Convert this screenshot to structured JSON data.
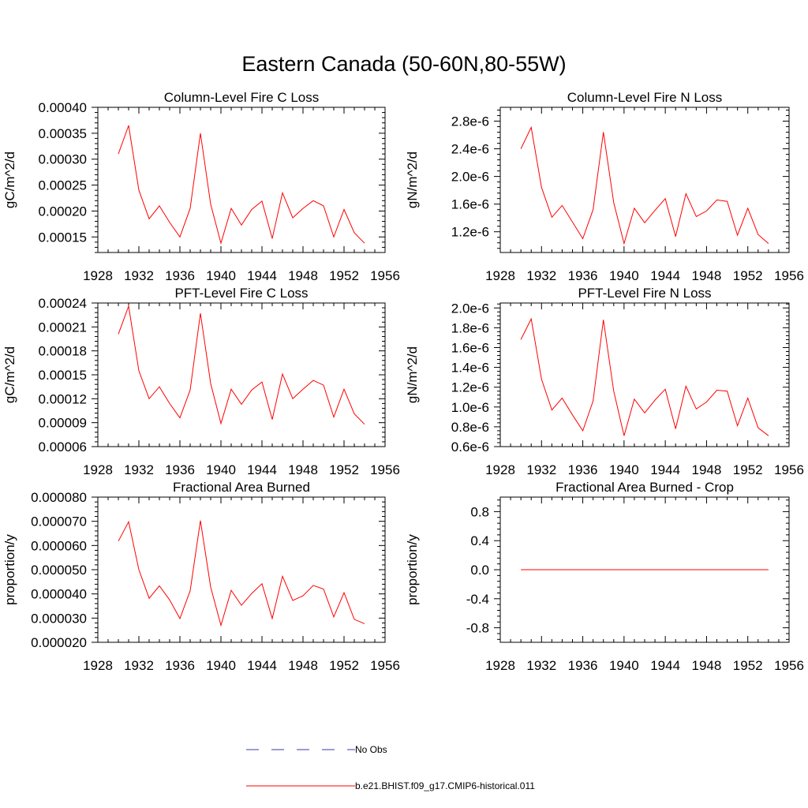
{
  "figure": {
    "title": "Eastern Canada (50-60N,80-55W)"
  },
  "colors": {
    "model": "#ff0000",
    "obs": "#3a3aa8",
    "axis": "#000000"
  },
  "legend": {
    "items": [
      {
        "label": "No Obs",
        "style": "dashed",
        "color_key": "obs"
      },
      {
        "label": "b.e21.BHIST.f09_g17.CMIP6-historical.011",
        "style": "solid",
        "color_key": "model"
      }
    ]
  },
  "chart_data": [
    {
      "type": "line",
      "title": "Column-Level Fire C Loss",
      "xlabel": "",
      "ylabel": "gC/m^2/d",
      "xlim": [
        1928,
        1956
      ],
      "ylim": [
        0.00012,
        0.0004
      ],
      "xticks": [
        1928,
        1932,
        1936,
        1940,
        1944,
        1948,
        1952,
        1956
      ],
      "xtick_labels": [
        "1928",
        "1932",
        "1936",
        "1940",
        "1944",
        "1948",
        "1952",
        "1956"
      ],
      "yticks": [
        0.00015,
        0.0002,
        0.00025,
        0.0003,
        0.00035,
        0.0004
      ],
      "ytick_labels": [
        "0.00015",
        "0.00020",
        "0.00025",
        "0.00030",
        "0.00035",
        "0.00040"
      ],
      "x": [
        1930,
        1931,
        1932,
        1933,
        1934,
        1935,
        1936,
        1937,
        1938,
        1939,
        1940,
        1941,
        1942,
        1943,
        1944,
        1945,
        1946,
        1947,
        1948,
        1949,
        1950,
        1951,
        1952,
        1953,
        1954
      ],
      "series": [
        {
          "color_key": "model",
          "values": [
            0.00031,
            0.000365,
            0.00024,
            0.000185,
            0.00021,
            0.000178,
            0.00015,
            0.000205,
            0.00035,
            0.000213,
            0.000138,
            0.000205,
            0.000173,
            0.000203,
            0.000219,
            0.000147,
            0.000235,
            0.000187,
            0.000205,
            0.00022,
            0.00021,
            0.00015,
            0.000203,
            0.000158,
            0.000138
          ]
        }
      ]
    },
    {
      "type": "line",
      "title": "Column-Level Fire N Loss",
      "xlabel": "",
      "ylabel": "gN/m^2/d",
      "xlim": [
        1928,
        1956
      ],
      "ylim": [
        9e-07,
        3e-06
      ],
      "xticks": [
        1928,
        1932,
        1936,
        1940,
        1944,
        1948,
        1952,
        1956
      ],
      "xtick_labels": [
        "1928",
        "1932",
        "1936",
        "1940",
        "1944",
        "1948",
        "1952",
        "1956"
      ],
      "yticks": [
        1.2e-06,
        1.6e-06,
        2e-06,
        2.4e-06,
        2.8e-06
      ],
      "ytick_labels": [
        "1.2e-6",
        "1.6e-6",
        "2.0e-6",
        "2.4e-6",
        "2.8e-6"
      ],
      "x": [
        1930,
        1931,
        1932,
        1933,
        1934,
        1935,
        1936,
        1937,
        1938,
        1939,
        1940,
        1941,
        1942,
        1943,
        1944,
        1945,
        1946,
        1947,
        1948,
        1949,
        1950,
        1951,
        1952,
        1953,
        1954
      ],
      "series": [
        {
          "color_key": "model",
          "values": [
            2.4e-06,
            2.71e-06,
            1.84e-06,
            1.41e-06,
            1.58e-06,
            1.34e-06,
            1.1e-06,
            1.52e-06,
            2.64e-06,
            1.62e-06,
            1.03e-06,
            1.54e-06,
            1.33e-06,
            1.51e-06,
            1.68e-06,
            1.13e-06,
            1.75e-06,
            1.42e-06,
            1.5e-06,
            1.66e-06,
            1.64e-06,
            1.15e-06,
            1.54e-06,
            1.16e-06,
            1.03e-06
          ]
        }
      ]
    },
    {
      "type": "line",
      "title": "PFT-Level Fire C Loss",
      "xlabel": "",
      "ylabel": "gC/m^2/d",
      "xlim": [
        1928,
        1956
      ],
      "ylim": [
        6e-05,
        0.00024
      ],
      "xticks": [
        1928,
        1932,
        1936,
        1940,
        1944,
        1948,
        1952,
        1956
      ],
      "xtick_labels": [
        "1928",
        "1932",
        "1936",
        "1940",
        "1944",
        "1948",
        "1952",
        "1956"
      ],
      "yticks": [
        6e-05,
        9e-05,
        0.00012,
        0.00015,
        0.00018,
        0.00021,
        0.00024
      ],
      "ytick_labels": [
        "0.00006",
        "0.00009",
        "0.00012",
        "0.00015",
        "0.00018",
        "0.00021",
        "0.00024"
      ],
      "x": [
        1930,
        1931,
        1932,
        1933,
        1934,
        1935,
        1936,
        1937,
        1938,
        1939,
        1940,
        1941,
        1942,
        1943,
        1944,
        1945,
        1946,
        1947,
        1948,
        1949,
        1950,
        1951,
        1952,
        1953,
        1954
      ],
      "series": [
        {
          "color_key": "model",
          "values": [
            0.000201,
            0.000236,
            0.000155,
            0.00012,
            0.000135,
            0.000114,
            9.6e-05,
            0.000131,
            0.000227,
            0.000139,
            8.9e-05,
            0.000132,
            0.000113,
            0.000131,
            0.000141,
            9.4e-05,
            0.000151,
            0.00012,
            0.000132,
            0.000143,
            0.000137,
            9.7e-05,
            0.000132,
            0.000101,
            8.8e-05
          ]
        }
      ]
    },
    {
      "type": "line",
      "title": "PFT-Level Fire N Loss",
      "xlabel": "",
      "ylabel": "gN/m^2/d",
      "xlim": [
        1928,
        1956
      ],
      "ylim": [
        6e-07,
        2.05e-06
      ],
      "xticks": [
        1928,
        1932,
        1936,
        1940,
        1944,
        1948,
        1952,
        1956
      ],
      "xtick_labels": [
        "1928",
        "1932",
        "1936",
        "1940",
        "1944",
        "1948",
        "1952",
        "1956"
      ],
      "yticks": [
        6e-07,
        8e-07,
        1e-06,
        1.2e-06,
        1.4e-06,
        1.6e-06,
        1.8e-06,
        2e-06
      ],
      "ytick_labels": [
        "0.6e-6",
        "0.8e-6",
        "1.0e-6",
        "1.2e-6",
        "1.4e-6",
        "1.6e-6",
        "1.8e-6",
        "2.0e-6"
      ],
      "x": [
        1930,
        1931,
        1932,
        1933,
        1934,
        1935,
        1936,
        1937,
        1938,
        1939,
        1940,
        1941,
        1942,
        1943,
        1944,
        1945,
        1946,
        1947,
        1948,
        1949,
        1950,
        1951,
        1952,
        1953,
        1954
      ],
      "series": [
        {
          "color_key": "model",
          "values": [
            1.68e-06,
            1.89e-06,
            1.28e-06,
            9.7e-07,
            1.09e-06,
            9.2e-07,
            7.6e-07,
            1.06e-06,
            1.88e-06,
            1.16e-06,
            7.1e-07,
            1.08e-06,
            9.4e-07,
            1.07e-06,
            1.18e-06,
            7.8e-07,
            1.21e-06,
            9.8e-07,
            1.05e-06,
            1.17e-06,
            1.16e-06,
            8.1e-07,
            1.09e-06,
            7.9e-07,
            7.1e-07
          ]
        }
      ]
    },
    {
      "type": "line",
      "title": "Fractional Area Burned",
      "xlabel": "",
      "ylabel": "proportion/y",
      "xlim": [
        1928,
        1956
      ],
      "ylim": [
        2e-05,
        8e-05
      ],
      "xticks": [
        1928,
        1932,
        1936,
        1940,
        1944,
        1948,
        1952,
        1956
      ],
      "xtick_labels": [
        "1928",
        "1932",
        "1936",
        "1940",
        "1944",
        "1948",
        "1952",
        "1956"
      ],
      "yticks": [
        2e-05,
        3e-05,
        4e-05,
        5e-05,
        6e-05,
        7e-05,
        8e-05
      ],
      "ytick_labels": [
        "0.000020",
        "0.000030",
        "0.000040",
        "0.000050",
        "0.000060",
        "0.000070",
        "0.000080"
      ],
      "x": [
        1930,
        1931,
        1932,
        1933,
        1934,
        1935,
        1936,
        1937,
        1938,
        1939,
        1940,
        1941,
        1942,
        1943,
        1944,
        1945,
        1946,
        1947,
        1948,
        1949,
        1950,
        1951,
        1952,
        1953,
        1954
      ],
      "series": [
        {
          "color_key": "model",
          "values": [
            6.18e-05,
            6.98e-05,
            5e-05,
            3.82e-05,
            4.33e-05,
            3.75e-05,
            2.98e-05,
            4.13e-05,
            7.03e-05,
            4.28e-05,
            2.7e-05,
            4.15e-05,
            3.53e-05,
            4.02e-05,
            4.42e-05,
            2.98e-05,
            4.73e-05,
            3.73e-05,
            3.92e-05,
            4.35e-05,
            4.2e-05,
            3.05e-05,
            4.05e-05,
            2.95e-05,
            2.77e-05
          ]
        }
      ]
    },
    {
      "type": "line",
      "title": "Fractional Area Burned - Crop",
      "xlabel": "",
      "ylabel": "proportion/y",
      "xlim": [
        1928,
        1956
      ],
      "ylim": [
        -1.0,
        1.0
      ],
      "xticks": [
        1928,
        1932,
        1936,
        1940,
        1944,
        1948,
        1952,
        1956
      ],
      "xtick_labels": [
        "1928",
        "1932",
        "1936",
        "1940",
        "1944",
        "1948",
        "1952",
        "1956"
      ],
      "yticks": [
        -0.8,
        -0.4,
        0.0,
        0.4,
        0.8
      ],
      "ytick_labels": [
        "-0.8",
        "-0.4",
        "0.0",
        "0.4",
        "0.8"
      ],
      "x": [
        1930,
        1954
      ],
      "series": [
        {
          "color_key": "model",
          "values": [
            0.0,
            0.0
          ]
        }
      ]
    }
  ]
}
